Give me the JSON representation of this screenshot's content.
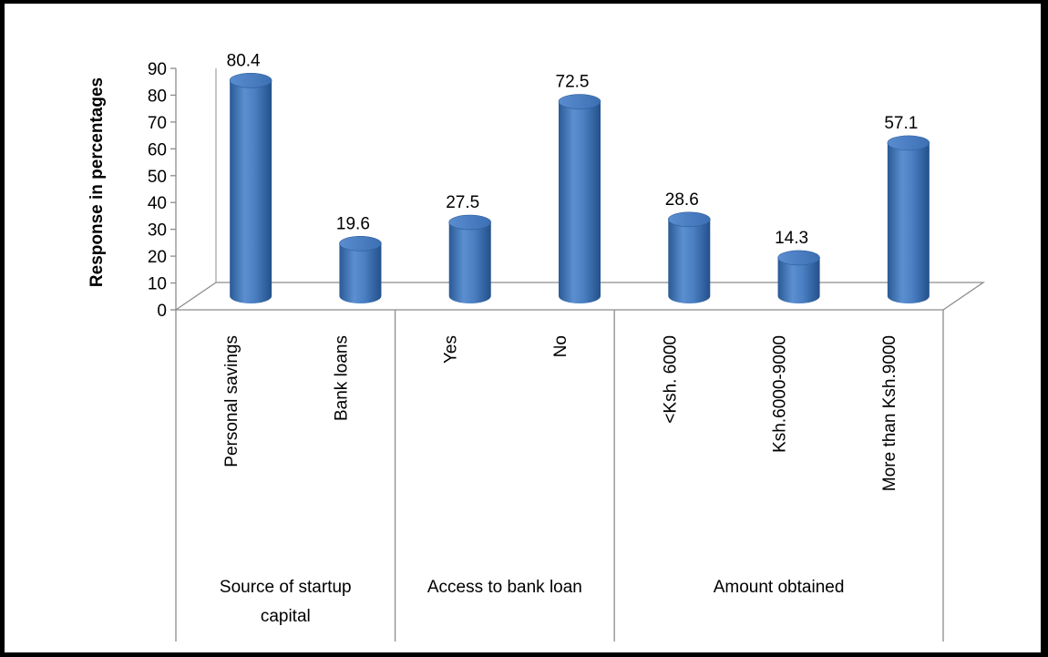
{
  "chart_data": {
    "type": "bar",
    "title": "",
    "ylabel": "Response in percentages",
    "xlabel": "",
    "ylim": [
      0,
      90
    ],
    "yticks": [
      0,
      10,
      20,
      30,
      40,
      50,
      60,
      70,
      80,
      90
    ],
    "categories": [
      "Personal savings",
      "Bank loans",
      "Yes",
      "No",
      "<Ksh. 6000",
      "Ksh.6000-9000",
      "More than Ksh.9000"
    ],
    "values": [
      80.4,
      19.6,
      27.5,
      72.5,
      28.6,
      14.3,
      57.1
    ],
    "data_labels": [
      "80.4",
      "19.6",
      "27.5",
      "72.5",
      "28.6",
      "14.3",
      "57.1"
    ],
    "groups": [
      {
        "label_lines": [
          "Source of startup",
          "capital"
        ],
        "members": [
          "Personal savings",
          "Bank loans"
        ]
      },
      {
        "label_lines": [
          "Access to bank loan"
        ],
        "members": [
          "Yes",
          "No"
        ]
      },
      {
        "label_lines": [
          "Amount obtained"
        ],
        "members": [
          "<Ksh. 6000",
          "Ksh.6000-9000",
          "More than Ksh.9000"
        ]
      }
    ],
    "style": "3d-cylinder",
    "bar_color": "#4f81bd",
    "grid": false,
    "legend": "none"
  }
}
